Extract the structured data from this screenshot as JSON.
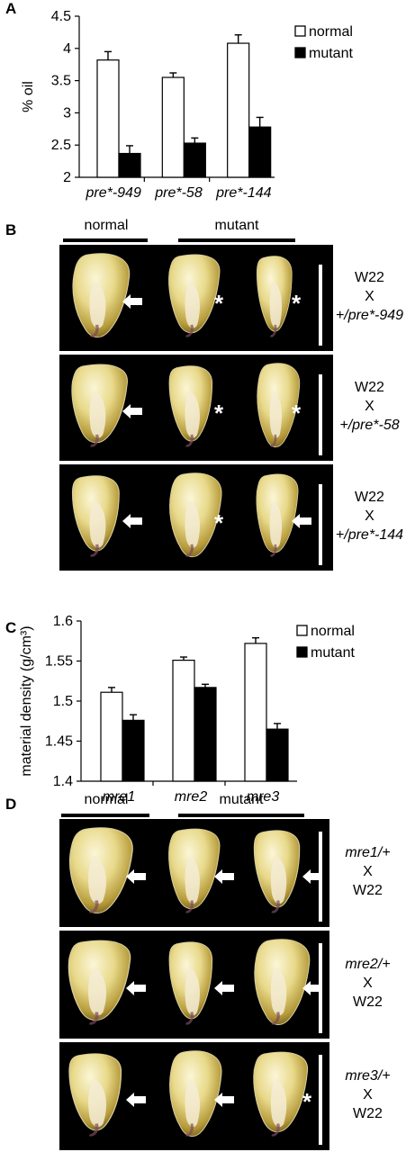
{
  "panels": {
    "A": {
      "letter": "A",
      "chart_data": {
        "type": "bar",
        "ylabel": "% oil",
        "categories": [
          "pre*-949",
          "pre*-58",
          "pre*-144"
        ],
        "series": [
          {
            "name": "normal",
            "values": [
              3.82,
              3.55,
              4.08
            ],
            "errors": [
              0.13,
              0.07,
              0.13
            ],
            "color": "#ffffff"
          },
          {
            "name": "mutant",
            "values": [
              2.37,
              2.53,
              2.78
            ],
            "errors": [
              0.12,
              0.08,
              0.15
            ],
            "color": "#000000"
          }
        ],
        "ylim": [
          2,
          4.5
        ],
        "yticks": [
          "2",
          "2.5",
          "3",
          "3.5",
          "4",
          "4.5"
        ],
        "legend": "top-right",
        "grid": false
      }
    },
    "B": {
      "letter": "B",
      "groups": {
        "normal": "normal",
        "mutant": "mutant"
      },
      "rows": [
        {
          "line1": "W22",
          "line2": "X",
          "line3": "+/pre*-949",
          "markers": [
            "arrow",
            "asterisk",
            "asterisk"
          ]
        },
        {
          "line1": "W22",
          "line2": "X",
          "line3": "+/pre*-58",
          "markers": [
            "arrow",
            "asterisk",
            "asterisk"
          ]
        },
        {
          "line1": "W22",
          "line2": "X",
          "line3": "+/pre*-144",
          "markers": [
            "arrow",
            "asterisk",
            "arrow"
          ]
        }
      ]
    },
    "C": {
      "letter": "C",
      "chart_data": {
        "type": "bar",
        "ylabel": "material density (g/cm³)",
        "categories": [
          "mre1",
          "mre2",
          "mre3"
        ],
        "series": [
          {
            "name": "normal",
            "values": [
              1.511,
              1.551,
              1.572
            ],
            "errors": [
              0.006,
              0.004,
              0.007
            ],
            "color": "#ffffff"
          },
          {
            "name": "mutant",
            "values": [
              1.476,
              1.517,
              1.465
            ],
            "errors": [
              0.007,
              0.004,
              0.007
            ],
            "color": "#000000"
          }
        ],
        "ylim": [
          1.4,
          1.6
        ],
        "yticks": [
          "1.4",
          "1.45",
          "1.5",
          "1.55",
          "1.6"
        ],
        "legend": "top-right",
        "grid": false
      }
    },
    "D": {
      "letter": "D",
      "groups": {
        "normal": "normal",
        "mutant": "mutant"
      },
      "rows": [
        {
          "line1": "mre1/+",
          "line2": "X",
          "line3": "W22",
          "markers": [
            "arrow",
            "arrow",
            "arrow"
          ]
        },
        {
          "line1": "mre2/+",
          "line2": "X",
          "line3": "W22",
          "markers": [
            "arrow",
            "arrow",
            "arrow"
          ]
        },
        {
          "line1": "mre3/+",
          "line2": "X",
          "line3": "W22",
          "markers": [
            "arrow",
            "arrow",
            "asterisk"
          ]
        }
      ]
    }
  }
}
